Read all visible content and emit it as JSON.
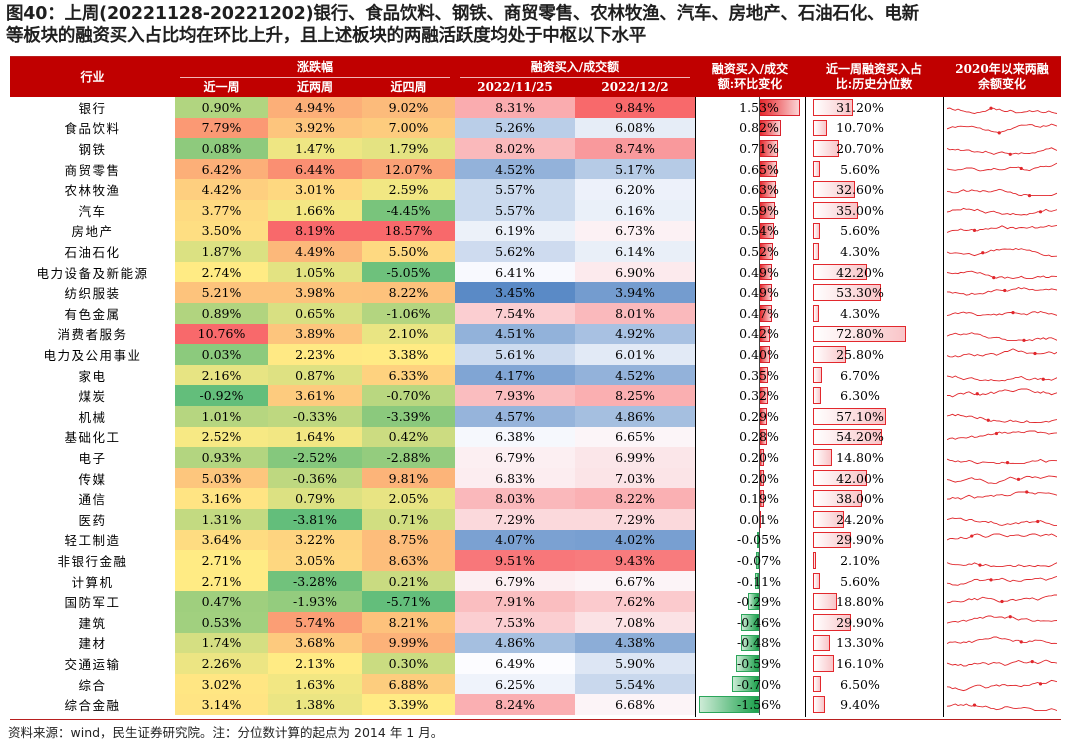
{
  "title": {
    "line1": "图40：上周(20221128-20221202)银行、食品饮料、钢铁、商贸零售、农林牧渔、汽车、房地产、石油石化、电新",
    "line2": "等板块的融资买入占比均在环比上升，且上述板块的两融活跃度均处于中枢以下水平"
  },
  "header": {
    "industry": "行业",
    "change_group": "涨跌幅",
    "week1": "近一周",
    "week2": "近两周",
    "week4": "近四周",
    "ratio_group": "融资买入/成交额",
    "date1": "2022/11/25",
    "date2": "2022/12/2",
    "wow": "融资买入/成交额:环比变化",
    "wow_line1": "融资买入/成交",
    "wow_line2": "额:环比变化",
    "pct_line1": "近一周融资买入占",
    "pct_line2": "比:历史分位数",
    "trend_line1": "2020年以来两融",
    "trend_line2": "余额变化"
  },
  "colors": {
    "header_bg": "#c00000",
    "heat_red": "#f8696b",
    "heat_yellow": "#ffeb84",
    "heat_green": "#63be7b",
    "heat_blue": "#5a8ac6",
    "heat_white": "#fcfcff",
    "spark": "#e0262b"
  },
  "rows": [
    {
      "name": "银行",
      "w1": "0.90%",
      "w2": "4.94%",
      "w4": "9.02%",
      "r1": "8.31%",
      "r2": "9.84%",
      "d": "1.53%",
      "p": "31.20%"
    },
    {
      "name": "食品饮料",
      "w1": "7.79%",
      "w2": "3.92%",
      "w4": "7.00%",
      "r1": "5.26%",
      "r2": "6.08%",
      "d": "0.82%",
      "p": "10.70%"
    },
    {
      "name": "钢铁",
      "w1": "0.08%",
      "w2": "1.47%",
      "w4": "1.79%",
      "r1": "8.02%",
      "r2": "8.74%",
      "d": "0.71%",
      "p": "20.70%"
    },
    {
      "name": "商贸零售",
      "w1": "6.42%",
      "w2": "6.44%",
      "w4": "12.07%",
      "r1": "4.52%",
      "r2": "5.17%",
      "d": "0.65%",
      "p": "5.60%"
    },
    {
      "name": "农林牧渔",
      "w1": "4.42%",
      "w2": "3.01%",
      "w4": "2.59%",
      "r1": "5.57%",
      "r2": "6.20%",
      "d": "0.63%",
      "p": "32.60%"
    },
    {
      "name": "汽车",
      "w1": "3.77%",
      "w2": "1.66%",
      "w4": "-4.45%",
      "r1": "5.57%",
      "r2": "6.16%",
      "d": "0.59%",
      "p": "35.00%"
    },
    {
      "name": "房地产",
      "w1": "3.50%",
      "w2": "8.19%",
      "w4": "18.57%",
      "r1": "6.19%",
      "r2": "6.73%",
      "d": "0.54%",
      "p": "5.60%"
    },
    {
      "name": "石油石化",
      "w1": "1.87%",
      "w2": "4.49%",
      "w4": "5.50%",
      "r1": "5.62%",
      "r2": "6.14%",
      "d": "0.52%",
      "p": "4.30%"
    },
    {
      "name": "电力设备及新能源",
      "w1": "2.74%",
      "w2": "1.05%",
      "w4": "-5.05%",
      "r1": "6.41%",
      "r2": "6.90%",
      "d": "0.49%",
      "p": "42.20%"
    },
    {
      "name": "纺织服装",
      "w1": "5.21%",
      "w2": "3.98%",
      "w4": "8.22%",
      "r1": "3.45%",
      "r2": "3.94%",
      "d": "0.49%",
      "p": "53.30%"
    },
    {
      "name": "有色金属",
      "w1": "0.89%",
      "w2": "0.65%",
      "w4": "-1.06%",
      "r1": "7.54%",
      "r2": "8.01%",
      "d": "0.47%",
      "p": "4.30%"
    },
    {
      "name": "消费者服务",
      "w1": "10.76%",
      "w2": "3.89%",
      "w4": "2.10%",
      "r1": "4.51%",
      "r2": "4.92%",
      "d": "0.42%",
      "p": "72.80%"
    },
    {
      "name": "电力及公用事业",
      "w1": "0.03%",
      "w2": "2.23%",
      "w4": "3.38%",
      "r1": "5.61%",
      "r2": "6.01%",
      "d": "0.40%",
      "p": "25.80%"
    },
    {
      "name": "家电",
      "w1": "2.16%",
      "w2": "0.87%",
      "w4": "6.33%",
      "r1": "4.17%",
      "r2": "4.52%",
      "d": "0.35%",
      "p": "6.70%"
    },
    {
      "name": "煤炭",
      "w1": "-0.92%",
      "w2": "3.61%",
      "w4": "-0.70%",
      "r1": "7.93%",
      "r2": "8.25%",
      "d": "0.32%",
      "p": "6.30%"
    },
    {
      "name": "机械",
      "w1": "1.01%",
      "w2": "-0.33%",
      "w4": "-3.39%",
      "r1": "4.57%",
      "r2": "4.86%",
      "d": "0.29%",
      "p": "57.10%"
    },
    {
      "name": "基础化工",
      "w1": "2.52%",
      "w2": "1.64%",
      "w4": "0.42%",
      "r1": "6.38%",
      "r2": "6.65%",
      "d": "0.28%",
      "p": "54.20%"
    },
    {
      "name": "电子",
      "w1": "0.93%",
      "w2": "-2.52%",
      "w4": "-2.88%",
      "r1": "6.79%",
      "r2": "6.99%",
      "d": "0.20%",
      "p": "14.80%"
    },
    {
      "name": "传媒",
      "w1": "5.03%",
      "w2": "-0.36%",
      "w4": "9.81%",
      "r1": "6.83%",
      "r2": "7.03%",
      "d": "0.20%",
      "p": "42.00%"
    },
    {
      "name": "通信",
      "w1": "3.16%",
      "w2": "0.79%",
      "w4": "2.05%",
      "r1": "8.03%",
      "r2": "8.22%",
      "d": "0.19%",
      "p": "38.00%"
    },
    {
      "name": "医药",
      "w1": "1.31%",
      "w2": "-3.81%",
      "w4": "0.71%",
      "r1": "7.29%",
      "r2": "7.29%",
      "d": "0.01%",
      "p": "24.20%"
    },
    {
      "name": "轻工制造",
      "w1": "3.64%",
      "w2": "3.22%",
      "w4": "8.75%",
      "r1": "4.07%",
      "r2": "4.02%",
      "d": "-0.05%",
      "p": "29.90%"
    },
    {
      "name": "非银行金融",
      "w1": "2.71%",
      "w2": "3.05%",
      "w4": "8.63%",
      "r1": "9.51%",
      "r2": "9.43%",
      "d": "-0.07%",
      "p": "2.10%"
    },
    {
      "name": "计算机",
      "w1": "2.71%",
      "w2": "-3.28%",
      "w4": "0.21%",
      "r1": "6.79%",
      "r2": "6.67%",
      "d": "-0.11%",
      "p": "5.60%"
    },
    {
      "name": "国防军工",
      "w1": "0.47%",
      "w2": "-1.93%",
      "w4": "-5.71%",
      "r1": "7.91%",
      "r2": "7.62%",
      "d": "-0.29%",
      "p": "18.80%"
    },
    {
      "name": "建筑",
      "w1": "0.53%",
      "w2": "5.74%",
      "w4": "8.21%",
      "r1": "7.53%",
      "r2": "7.08%",
      "d": "-0.46%",
      "p": "29.90%"
    },
    {
      "name": "建材",
      "w1": "1.74%",
      "w2": "3.68%",
      "w4": "9.99%",
      "r1": "4.86%",
      "r2": "4.38%",
      "d": "-0.48%",
      "p": "13.30%"
    },
    {
      "name": "交通运输",
      "w1": "2.26%",
      "w2": "2.13%",
      "w4": "0.30%",
      "r1": "6.49%",
      "r2": "5.90%",
      "d": "-0.59%",
      "p": "16.10%"
    },
    {
      "name": "综合",
      "w1": "3.02%",
      "w2": "1.63%",
      "w4": "6.88%",
      "r1": "6.25%",
      "r2": "5.54%",
      "d": "-0.70%",
      "p": "6.50%"
    },
    {
      "name": "综合金融",
      "w1": "3.14%",
      "w2": "1.38%",
      "w4": "3.39%",
      "r1": "8.24%",
      "r2": "6.68%",
      "d": "-1.56%",
      "p": "9.40%"
    }
  ],
  "source": "资料来源：wind，民生证券研究院。注：分位数计算的起点为 2014 年 1 月。"
}
